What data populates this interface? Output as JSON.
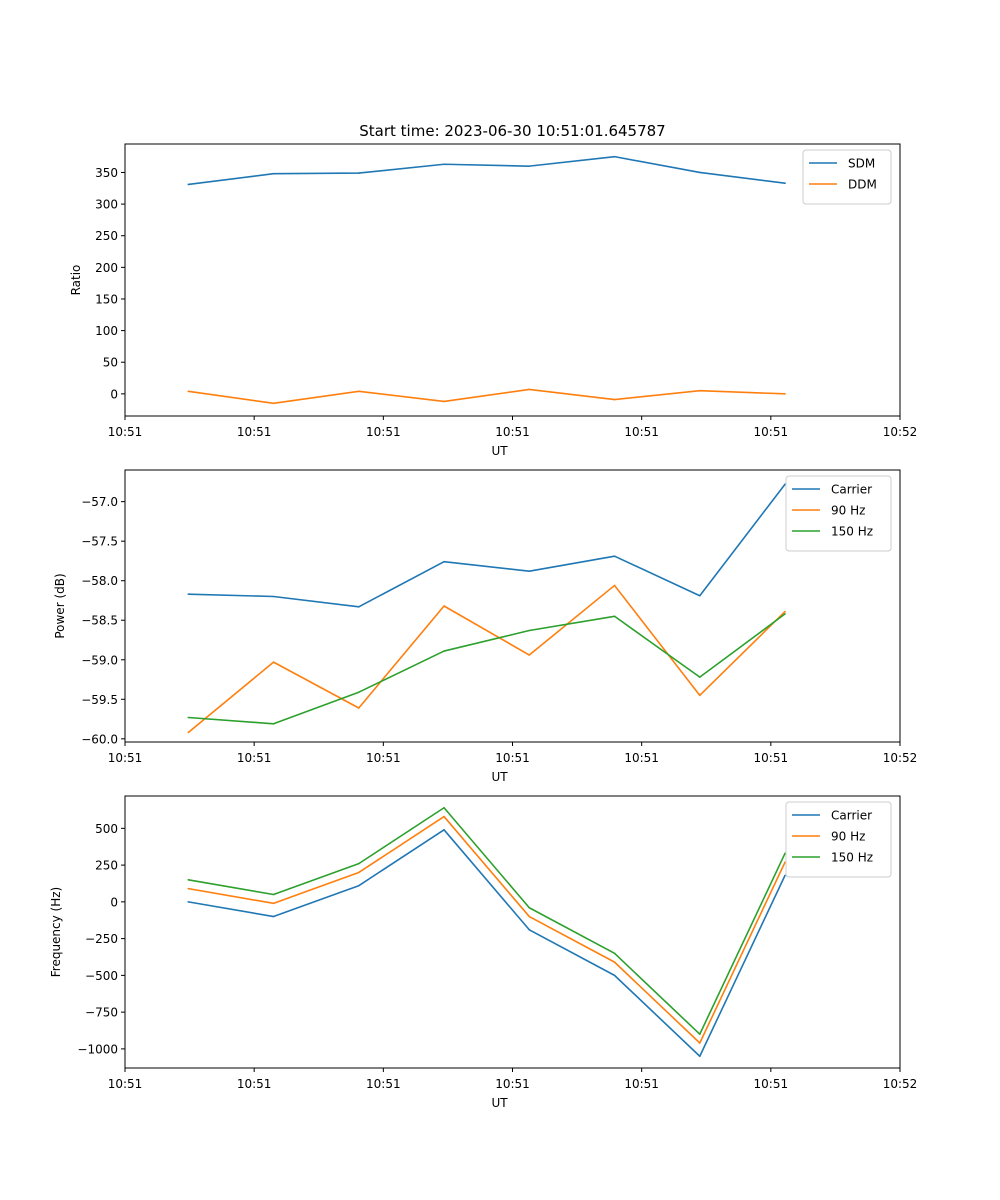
{
  "title": "Start time: 2023-06-30 10:51:01.645787",
  "colors": {
    "blue": "#1f77b4",
    "orange": "#ff7f0e",
    "green": "#2ca02c"
  },
  "chart_data": [
    {
      "type": "line",
      "xlabel": "UT",
      "ylabel": "Ratio",
      "x_tick_labels": [
        "10:51",
        "10:51",
        "10:51",
        "10:51",
        "10:51",
        "10:51",
        "10:52"
      ],
      "x_ticks_seconds": [
        0,
        10,
        20,
        30,
        40,
        50,
        60
      ],
      "xlim_seconds": [
        0,
        60
      ],
      "y_ticks": [
        0,
        50,
        100,
        150,
        200,
        250,
        300,
        350
      ],
      "ylim": [
        -35,
        395
      ],
      "legend_location": "upper right",
      "x_seconds": [
        4.9,
        11.5,
        18.1,
        24.7,
        31.3,
        37.9,
        44.5,
        51.1
      ],
      "series": [
        {
          "name": "SDM",
          "color": "#1f77b4",
          "values": [
            331,
            348,
            349,
            363,
            360,
            375,
            350,
            333
          ]
        },
        {
          "name": "DDM",
          "color": "#ff7f0e",
          "values": [
            4,
            -15,
            4,
            -12,
            7,
            -9,
            5,
            0
          ]
        }
      ]
    },
    {
      "type": "line",
      "xlabel": "UT",
      "ylabel": "Power (dB)",
      "x_tick_labels": [
        "10:51",
        "10:51",
        "10:51",
        "10:51",
        "10:51",
        "10:51",
        "10:52"
      ],
      "x_ticks_seconds": [
        0,
        10,
        20,
        30,
        40,
        50,
        60
      ],
      "xlim_seconds": [
        0,
        60
      ],
      "y_ticks": [
        -60.0,
        -59.5,
        -59.0,
        -58.5,
        -58.0,
        -57.5,
        -57.0
      ],
      "y_tick_labels": [
        "−60.0",
        "−59.5",
        "−59.0",
        "−58.5",
        "−58.0",
        "−57.5",
        "−57.0"
      ],
      "ylim": [
        -60.04,
        -56.6
      ],
      "legend_location": "upper right",
      "x_seconds": [
        4.9,
        11.5,
        18.1,
        24.7,
        31.3,
        37.9,
        44.5,
        51.1
      ],
      "series": [
        {
          "name": "Carrier",
          "color": "#1f77b4",
          "values": [
            -58.17,
            -58.2,
            -58.33,
            -57.76,
            -57.88,
            -57.69,
            -58.19,
            -56.78
          ]
        },
        {
          "name": "90 Hz",
          "color": "#ff7f0e",
          "values": [
            -59.92,
            -59.03,
            -59.61,
            -58.32,
            -58.94,
            -58.06,
            -59.45,
            -58.39
          ]
        },
        {
          "name": "150 Hz",
          "color": "#2ca02c",
          "values": [
            -59.73,
            -59.81,
            -59.41,
            -58.89,
            -58.63,
            -58.45,
            -59.22,
            -58.42
          ]
        }
      ]
    },
    {
      "type": "line",
      "xlabel": "UT",
      "ylabel": "Frequency (Hz)",
      "x_tick_labels": [
        "10:51",
        "10:51",
        "10:51",
        "10:51",
        "10:51",
        "10:51",
        "10:52"
      ],
      "x_ticks_seconds": [
        0,
        10,
        20,
        30,
        40,
        50,
        60
      ],
      "xlim_seconds": [
        0,
        60
      ],
      "y_ticks": [
        -1000,
        -750,
        -500,
        -250,
        0,
        250,
        500
      ],
      "y_tick_labels": [
        "−1000",
        "−750",
        "−500",
        "−250",
        "0",
        "250",
        "500"
      ],
      "ylim": [
        -1130,
        720
      ],
      "legend_location": "upper right",
      "x_seconds": [
        4.9,
        11.5,
        18.1,
        24.7,
        31.3,
        37.9,
        44.5,
        51.1
      ],
      "series": [
        {
          "name": "Carrier",
          "color": "#1f77b4",
          "values": [
            0,
            -100,
            110,
            490,
            -190,
            -500,
            -1050,
            180
          ]
        },
        {
          "name": "90 Hz",
          "color": "#ff7f0e",
          "values": [
            90,
            -10,
            200,
            580,
            -100,
            -410,
            -960,
            270
          ]
        },
        {
          "name": "150 Hz",
          "color": "#2ca02c",
          "values": [
            150,
            50,
            260,
            640,
            -40,
            -350,
            -900,
            330
          ]
        }
      ]
    }
  ]
}
